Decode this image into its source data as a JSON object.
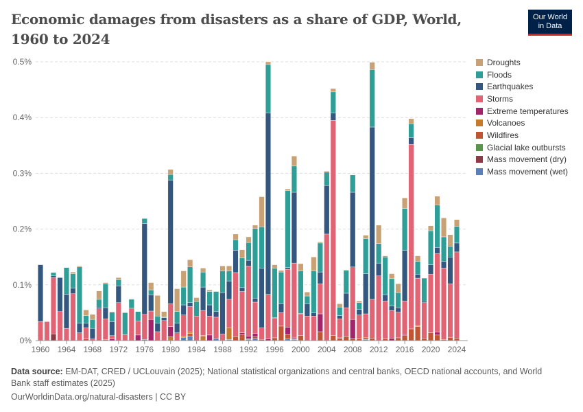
{
  "title": "Economic damages from disasters as a share of GDP, World, 1960 to 2024",
  "logo": {
    "line1": "Our World",
    "line2": "in Data"
  },
  "footer": {
    "source_label": "Data source:",
    "source_text": "EM-DAT, CRED / UCLouvain (2025); National statistical organizations and central banks, OECD national accounts, and World Bank staff estimates (2025)",
    "link": "OurWorldinData.org/natural-disasters | CC BY"
  },
  "chart_data": {
    "type": "bar",
    "stacked": true,
    "title": "Economic damages from disasters as a share of GDP, World, 1960 to 2024",
    "xlabel": "",
    "ylabel": "",
    "ylim": [
      0,
      0.5
    ],
    "y_ticks": [
      0,
      0.1,
      0.2,
      0.3,
      0.4,
      0.5
    ],
    "y_tick_labels": [
      "0%",
      "0.1%",
      "0.2%",
      "0.3%",
      "0.4%",
      "0.5%"
    ],
    "x_ticks": [
      "1960",
      "1964",
      "1968",
      "1972",
      "1976",
      "1980",
      "1984",
      "1988",
      "1992",
      "1996",
      "2000",
      "2004",
      "2008",
      "2012",
      "2016",
      "2020",
      "2024"
    ],
    "x_start": 1960,
    "x_end": 2024,
    "grid": true,
    "legend_position": "right",
    "series": [
      {
        "name": "Mass movement (wet)",
        "color": "#5b7fb6",
        "values": [
          0,
          0,
          0,
          0,
          0,
          0,
          0,
          0,
          0,
          0,
          0,
          0,
          0,
          0,
          0,
          0,
          0.002,
          0,
          0,
          0,
          0,
          0,
          0.006,
          0.008,
          0,
          0,
          0,
          0.004,
          0,
          0.002,
          0,
          0,
          0.002,
          0.004,
          0,
          0,
          0,
          0,
          0.003,
          0.002,
          0,
          0,
          0,
          0,
          0,
          0,
          0,
          0,
          0,
          0,
          0.002,
          0,
          0,
          0,
          0,
          0,
          0,
          0,
          0,
          0,
          0,
          0,
          0,
          0,
          0
        ]
      },
      {
        "name": "Mass movement (dry)",
        "color": "#8c3b46",
        "values": [
          0,
          0,
          0.012,
          0,
          0,
          0,
          0,
          0,
          0,
          0,
          0,
          0,
          0,
          0,
          0,
          0,
          0,
          0,
          0,
          0,
          0,
          0,
          0,
          0,
          0,
          0,
          0,
          0,
          0,
          0,
          0,
          0,
          0,
          0,
          0.002,
          0,
          0,
          0,
          0,
          0,
          0,
          0,
          0,
          0,
          0,
          0,
          0,
          0,
          0,
          0,
          0,
          0,
          0,
          0,
          0,
          0,
          0,
          0,
          0,
          0,
          0,
          0,
          0,
          0,
          0
        ]
      },
      {
        "name": "Glacial lake outbursts",
        "color": "#58944b",
        "values": [
          0,
          0,
          0,
          0,
          0,
          0,
          0,
          0,
          0,
          0,
          0,
          0,
          0,
          0,
          0,
          0,
          0,
          0,
          0,
          0,
          0,
          0,
          0,
          0,
          0,
          0,
          0,
          0,
          0,
          0,
          0,
          0,
          0,
          0,
          0,
          0,
          0,
          0,
          0,
          0,
          0,
          0,
          0,
          0,
          0,
          0,
          0,
          0,
          0,
          0,
          0,
          0,
          0,
          0,
          0,
          0,
          0,
          0,
          0,
          0,
          0,
          0,
          0,
          0,
          0
        ]
      },
      {
        "name": "Wildfires",
        "color": "#c05533",
        "values": [
          0,
          0,
          0,
          0,
          0,
          0,
          0,
          0.003,
          0,
          0,
          0.002,
          0,
          0,
          0,
          0,
          0,
          0,
          0,
          0,
          0,
          0,
          0,
          0,
          0.005,
          0,
          0,
          0,
          0,
          0,
          0,
          0.007,
          0.011,
          0.002,
          0.003,
          0,
          0,
          0.005,
          0.026,
          0.008,
          0,
          0.009,
          0,
          0,
          0.016,
          0,
          0.009,
          0.004,
          0.007,
          0.004,
          0.003,
          0.003,
          0.004,
          0,
          0.003,
          0,
          0.005,
          0.009,
          0.021,
          0.025,
          0.004,
          0.014,
          0.01,
          0.002,
          0.006,
          0.004
        ]
      },
      {
        "name": "Volcanoes",
        "color": "#c57a2e",
        "values": [
          0,
          0,
          0,
          0,
          0,
          0,
          0,
          0,
          0,
          0,
          0,
          0,
          0,
          0,
          0,
          0,
          0,
          0,
          0,
          0,
          0.007,
          0,
          0.002,
          0.002,
          0,
          0.008,
          0,
          0,
          0,
          0.021,
          0,
          0,
          0,
          0,
          0,
          0,
          0,
          0,
          0,
          0.002,
          0,
          0,
          0,
          0,
          0,
          0,
          0,
          0,
          0,
          0,
          0,
          0,
          0,
          0,
          0,
          0,
          0,
          0,
          0.002,
          0,
          0,
          0,
          0,
          0,
          0
        ]
      },
      {
        "name": "Extreme temperatures",
        "color": "#a3246b",
        "values": [
          0,
          0,
          0,
          0,
          0,
          0,
          0,
          0,
          0,
          0,
          0,
          0.003,
          0,
          0,
          0,
          0.01,
          0,
          0.038,
          0,
          0,
          0.018,
          0,
          0,
          0,
          0,
          0.001,
          0.01,
          0,
          0,
          0,
          0,
          0.003,
          0.004,
          0.006,
          0,
          0.003,
          0,
          0,
          0.013,
          0.002,
          0,
          0,
          0,
          0.032,
          0,
          0,
          0.001,
          0,
          0.034,
          0,
          0,
          0,
          0,
          0,
          0.004,
          0,
          0.002,
          0,
          0,
          0,
          0,
          0.005,
          0,
          0,
          0
        ]
      },
      {
        "name": "Storms",
        "color": "#e06474",
        "values": [
          0.034,
          0.034,
          0.101,
          0.052,
          0.022,
          0.084,
          0.014,
          0.02,
          0.003,
          0.057,
          0.037,
          0.006,
          0.068,
          0.011,
          0.058,
          0.025,
          0.045,
          0.015,
          0.016,
          0.036,
          0.041,
          0.014,
          0.038,
          0.046,
          0.044,
          0.045,
          0.034,
          0.038,
          0.012,
          0.051,
          0.115,
          0.074,
          0.126,
          0.056,
          0.021,
          0.08,
          0.035,
          0.024,
          0.104,
          0.133,
          0.039,
          0.044,
          0.044,
          0.054,
          0.191,
          0.386,
          0.034,
          0.052,
          0.094,
          0.043,
          0.043,
          0.07,
          0.116,
          0.068,
          0.05,
          0.046,
          0.06,
          0.331,
          0.085,
          0.064,
          0.105,
          0.141,
          0.128,
          0.096,
          0.155
        ]
      },
      {
        "name": "Earthquakes",
        "color": "#33577f",
        "values": [
          0.102,
          0,
          0.003,
          0.061,
          0.061,
          0.01,
          0.017,
          0.008,
          0.019,
          0.003,
          0.02,
          0.025,
          0.03,
          0,
          0,
          0,
          0.163,
          0.029,
          0.015,
          0.005,
          0.222,
          0.017,
          0.018,
          0.007,
          0,
          0.042,
          0.02,
          0.01,
          0.074,
          0.033,
          0.04,
          0.007,
          0.01,
          0.007,
          0.107,
          0.325,
          0.001,
          0.016,
          0.003,
          0.127,
          0.001,
          0.022,
          0.006,
          0.021,
          0.087,
          0.013,
          0.006,
          0.026,
          0.134,
          0.01,
          0.072,
          0.309,
          0.023,
          0.011,
          0.008,
          0.008,
          0.091,
          0.012,
          0.007,
          0.003,
          0.017,
          0.011,
          0.012,
          0.048,
          0.016
        ]
      },
      {
        "name": "Floods",
        "color": "#2f9e96",
        "values": [
          0,
          0,
          0.006,
          0,
          0.048,
          0.026,
          0.101,
          0.014,
          0.016,
          0.014,
          0.043,
          0.017,
          0.011,
          0.039,
          0.016,
          0.017,
          0.009,
          0.009,
          0.013,
          0.001,
          0.01,
          0.021,
          0.032,
          0.064,
          0.026,
          0.027,
          0.024,
          0.036,
          0.039,
          0.018,
          0.019,
          0.053,
          0.032,
          0.125,
          0.074,
          0.087,
          0.089,
          0.057,
          0.138,
          0.047,
          0.076,
          0.014,
          0.075,
          0.052,
          0.024,
          0.038,
          0.015,
          0.041,
          0.031,
          0.012,
          0.063,
          0.103,
          0.035,
          0.068,
          0.049,
          0.027,
          0.075,
          0.025,
          0.023,
          0.041,
          0.061,
          0.076,
          0.044,
          0.019,
          0.03
        ]
      },
      {
        "name": "Droughts",
        "color": "#c8a274",
        "values": [
          0,
          0,
          0,
          0,
          0,
          0.003,
          0.002,
          0.01,
          0.009,
          0.015,
          0.002,
          0.001,
          0.004,
          0.001,
          0.001,
          0,
          0,
          0.013,
          0.037,
          0.01,
          0.009,
          0.041,
          0.029,
          0.013,
          0.007,
          0.007,
          0.003,
          0,
          0.009,
          0.009,
          0.01,
          0.015,
          0.01,
          0.006,
          0.054,
          0.005,
          0.006,
          0.003,
          0.003,
          0.018,
          0.013,
          0.007,
          0.025,
          0.002,
          0.002,
          0.006,
          0.006,
          0.001,
          0,
          0.003,
          0.006,
          0.013,
          0.033,
          0.002,
          0.009,
          0.016,
          0.019,
          0.009,
          0.01,
          0,
          0.009,
          0.016,
          0.034,
          0.021,
          0.012
        ]
      }
    ],
    "legend": [
      "Droughts",
      "Floods",
      "Earthquakes",
      "Storms",
      "Extreme temperatures",
      "Volcanoes",
      "Wildfires",
      "Glacial lake outbursts",
      "Mass movement (dry)",
      "Mass movement (wet)"
    ]
  }
}
